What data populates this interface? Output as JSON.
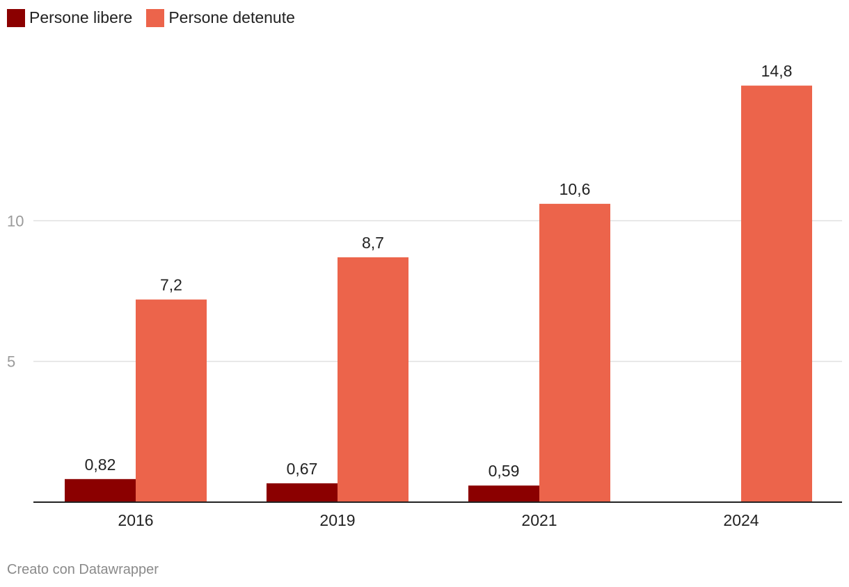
{
  "chart_data": {
    "type": "bar",
    "categories": [
      "2016",
      "2019",
      "2021",
      "2024"
    ],
    "series": [
      {
        "name": "Persone libere",
        "values": [
          0.82,
          0.67,
          0.59,
          null
        ],
        "labels": [
          "0,82",
          "0,67",
          "0,59",
          ""
        ],
        "color": "#8b0000"
      },
      {
        "name": "Persone detenute",
        "values": [
          7.2,
          8.7,
          10.6,
          14.8
        ],
        "labels": [
          "7,2",
          "8,7",
          "10,6",
          "14,8"
        ],
        "color": "#ec644b"
      }
    ],
    "yticks": [
      {
        "value": 5,
        "label": "5"
      },
      {
        "value": 10,
        "label": "10"
      }
    ],
    "ylim": [
      0,
      15
    ],
    "grid": true,
    "legend_position": "top-left"
  },
  "footer": "Creato con Datawrapper"
}
